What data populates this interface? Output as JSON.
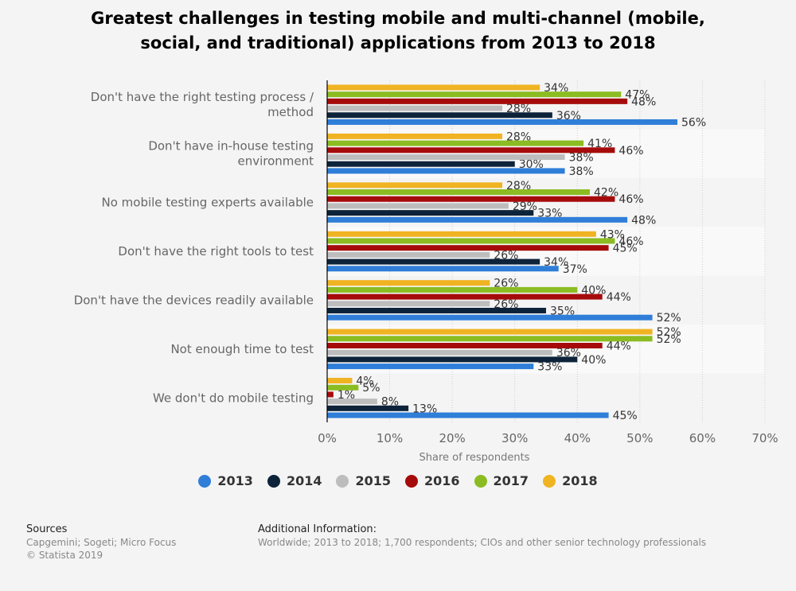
{
  "chart_data": {
    "type": "bar",
    "orientation": "horizontal",
    "title": "Greatest challenges in testing mobile and multi-channel (mobile, social, and traditional) applications from 2013 to 2018",
    "title_lines": [
      "Greatest challenges in testing mobile and multi-channel (mobile,",
      "social, and traditional) applications from 2013 to 2018"
    ],
    "xlabel": "Share of respondents",
    "xlim": [
      0,
      70
    ],
    "xticks": [
      "0%",
      "10%",
      "20%",
      "30%",
      "40%",
      "50%",
      "60%",
      "70%"
    ],
    "value_suffix": "%",
    "grid": "vertical dotted",
    "legend_position": "bottom",
    "categories": [
      [
        "Don't have the right testing process /",
        "method"
      ],
      [
        "Don't have in-house testing",
        "environment"
      ],
      [
        "No mobile testing experts available"
      ],
      [
        "Don't have the right tools to test"
      ],
      [
        "Don't have the devices readily available"
      ],
      [
        "Not enough time to test"
      ],
      [
        "We don't do mobile testing"
      ]
    ],
    "series": [
      {
        "name": "2013",
        "color": "#2f7ed8",
        "values": [
          56,
          38,
          48,
          37,
          52,
          33,
          45
        ]
      },
      {
        "name": "2014",
        "color": "#0d233a",
        "values": [
          36,
          30,
          33,
          34,
          35,
          40,
          13
        ]
      },
      {
        "name": "2015",
        "color": "#bdbdbd",
        "values": [
          28,
          38,
          29,
          26,
          26,
          36,
          8
        ]
      },
      {
        "name": "2016",
        "color": "#a60b0b",
        "values": [
          48,
          46,
          46,
          45,
          44,
          44,
          1
        ]
      },
      {
        "name": "2017",
        "color": "#8bbc21",
        "values": [
          47,
          41,
          42,
          46,
          40,
          52,
          5
        ]
      },
      {
        "name": "2018",
        "color": "#f0b322",
        "values": [
          34,
          28,
          28,
          43,
          26,
          52,
          4
        ]
      }
    ]
  },
  "footer": {
    "sources_heading": "Sources",
    "sources_text": "Capgemini; Sogeti; Micro Focus",
    "copyright": "© Statista 2019",
    "additional_heading": "Additional Information:",
    "additional_text": "Worldwide; 2013 to 2018; 1,700 respondents; CIOs and other senior technology professionals"
  }
}
